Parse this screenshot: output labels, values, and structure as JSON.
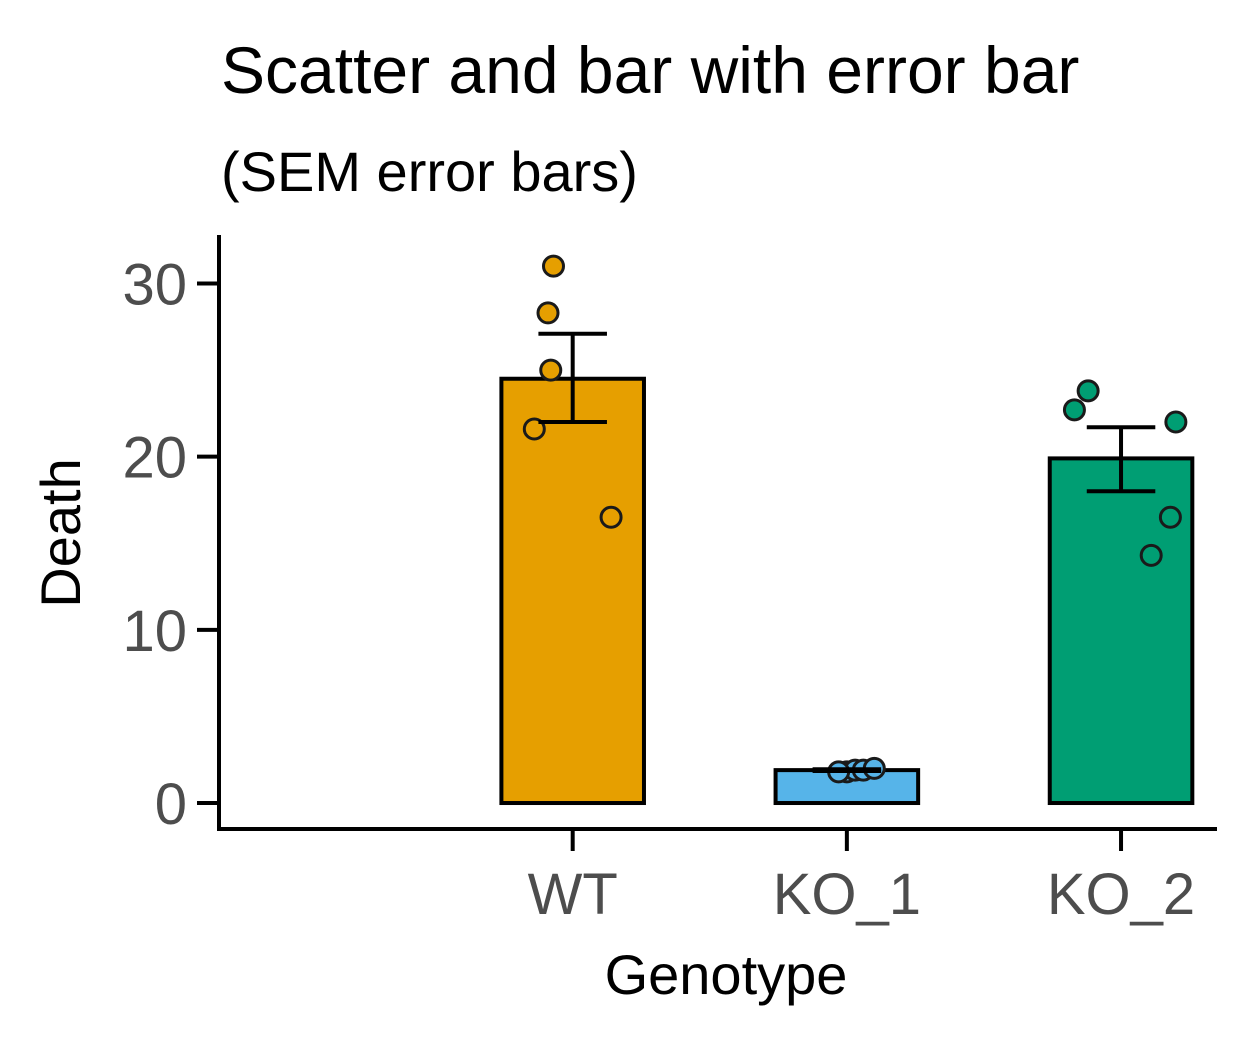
{
  "chart_data": {
    "type": "bar",
    "title": "Scatter and bar with error bar",
    "subtitle": "(SEM error bars)",
    "xlabel": "Genotype",
    "ylabel": "Death",
    "ylim": [
      -1.5,
      32.8
    ],
    "yticks": [
      0,
      10,
      20,
      30
    ],
    "grid": false,
    "legend": "none",
    "categories": [
      "WT",
      "KO_1",
      "KO_2"
    ],
    "colors": [
      "#E69F00",
      "#56B4E9",
      "#009E73"
    ],
    "values": [
      24.5,
      1.9,
      19.9
    ],
    "error_low": [
      22.0,
      1.85,
      18.0
    ],
    "error_high": [
      27.1,
      1.95,
      21.7
    ],
    "points": [
      [
        {
          "x": -0.07,
          "y": 31.0
        },
        {
          "x": -0.09,
          "y": 28.3
        },
        {
          "x": -0.08,
          "y": 25.0
        },
        {
          "x": -0.14,
          "y": 21.6
        },
        {
          "x": 0.14,
          "y": 16.5
        }
      ],
      [
        {
          "x": 0.0,
          "y": 1.8
        },
        {
          "x": 0.03,
          "y": 1.9
        },
        {
          "x": 0.06,
          "y": 1.9
        },
        {
          "x": 0.1,
          "y": 2.0
        },
        {
          "x": -0.03,
          "y": 1.8
        }
      ],
      [
        {
          "x": -0.12,
          "y": 23.8
        },
        {
          "x": -0.17,
          "y": 22.7
        },
        {
          "x": 0.2,
          "y": 22.0
        },
        {
          "x": 0.18,
          "y": 16.5
        },
        {
          "x": 0.11,
          "y": 14.3
        }
      ]
    ]
  }
}
